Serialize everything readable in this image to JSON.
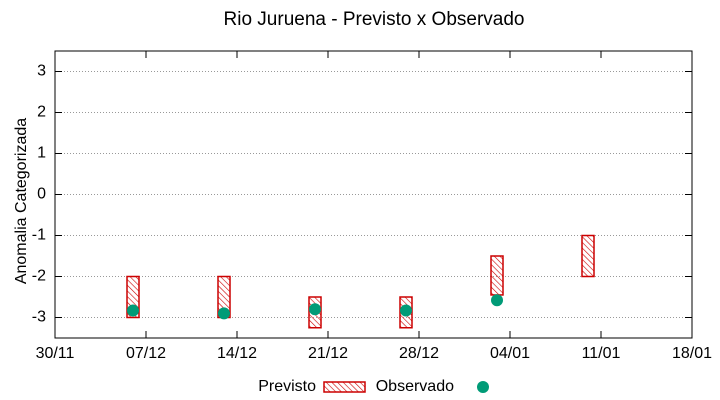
{
  "chart_data": {
    "type": "range",
    "title": "Rio Juruena - Previsto x Observado",
    "ylabel": "Anomalia Categorizada",
    "x": [
      "06/12",
      "13/12",
      "20/12",
      "27/12",
      "03/01",
      "10/01"
    ],
    "series": [
      {
        "name": "Previsto",
        "color": "#cc0000",
        "low": [
          -3,
          -3,
          -3.25,
          -3.25,
          -2.45,
          -2
        ],
        "high": [
          -2,
          -2,
          -2.5,
          -2.5,
          -1.5,
          -1
        ]
      },
      {
        "name": "Observado",
        "color": "#009b77",
        "values": [
          -2.83,
          -2.9,
          -2.8,
          -2.83,
          -2.58,
          null
        ]
      }
    ],
    "xlim": [
      "30/11",
      "18/01"
    ],
    "xticks": [
      "30/11",
      "07/12",
      "14/12",
      "21/12",
      "28/12",
      "04/01",
      "11/01",
      "18/01"
    ],
    "ylim": [
      -3.5,
      3.5
    ],
    "yticks": [
      -3,
      -2,
      -1,
      0,
      1,
      2,
      3
    ],
    "grid": true
  }
}
